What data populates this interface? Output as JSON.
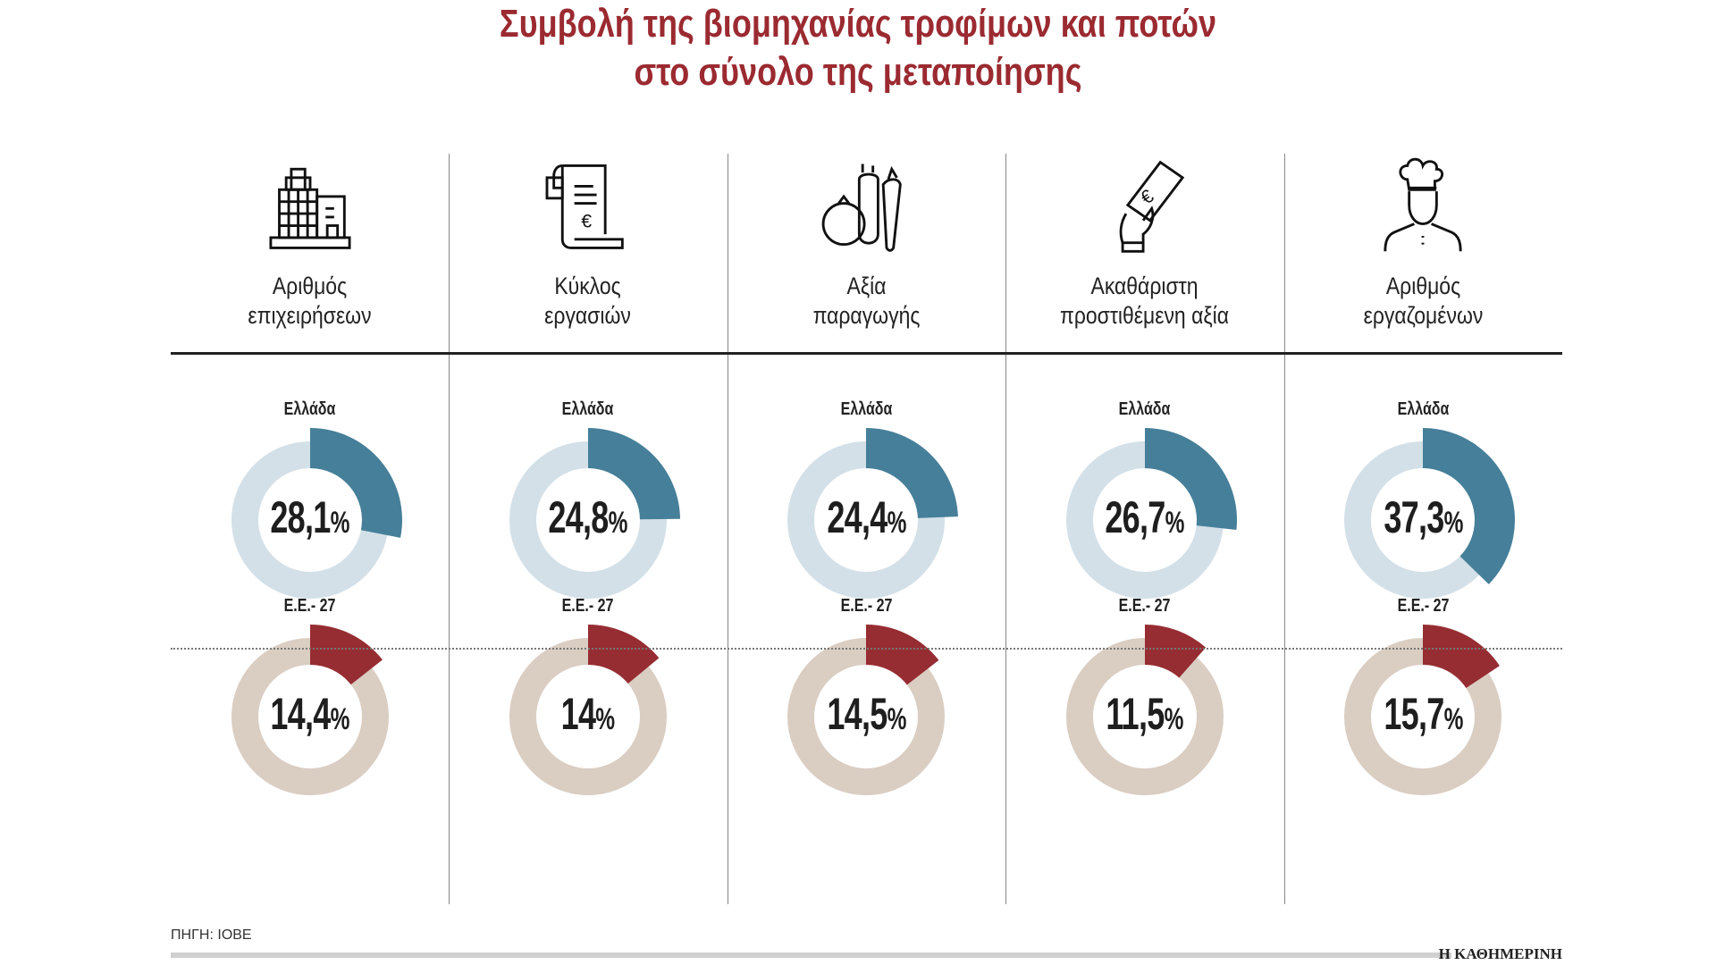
{
  "title": [
    "Συμβολή της βιομηχανίας τροφίμων και ποτών",
    "στο σύνολο της μεταποίησης"
  ],
  "colors": {
    "title": "#9b2a31",
    "greece": "#467f99",
    "greece_bg": "#d3e0e8",
    "eu": "#962d32",
    "eu_bg": "#dacdc2"
  },
  "chart_data": {
    "type": "pie",
    "title": "Συμβολή της βιομηχανίας τροφίμων και ποτών στο σύνολο της μεταποίησης",
    "unit": "%",
    "categories": [
      {
        "label": [
          "Αριθμός",
          "επιχειρήσεων"
        ],
        "icon": "building-icon"
      },
      {
        "label": [
          "Κύκλος",
          "εργασιών"
        ],
        "icon": "receipt-euro-icon"
      },
      {
        "label": [
          "Αξία",
          "παραγωγής"
        ],
        "icon": "vegetables-icon"
      },
      {
        "label": [
          "Ακαθάριστη",
          "προστιθέμενη αξία"
        ],
        "icon": "hand-banknote-icon"
      },
      {
        "label": [
          "Αριθμός",
          "εργαζομένων"
        ],
        "icon": "chef-icon"
      }
    ],
    "series": [
      {
        "name": "Ελλάδα",
        "values": [
          28.1,
          24.8,
          24.4,
          26.7,
          37.3
        ],
        "labels": [
          "28,1",
          "24,8",
          "24,4",
          "26,7",
          "37,3"
        ]
      },
      {
        "name": "Ε.Ε.- 27",
        "values": [
          14.4,
          14,
          14.5,
          11.5,
          15.7
        ],
        "labels": [
          "14,4",
          "14",
          "14,5",
          "11,5",
          "15,7"
        ]
      }
    ]
  },
  "percent_sign": "%",
  "source": "ΠΗΓΗ: ΙΟΒΕ",
  "brand": "Η ΚΑΘΗΜΕΡΙΝΗ"
}
